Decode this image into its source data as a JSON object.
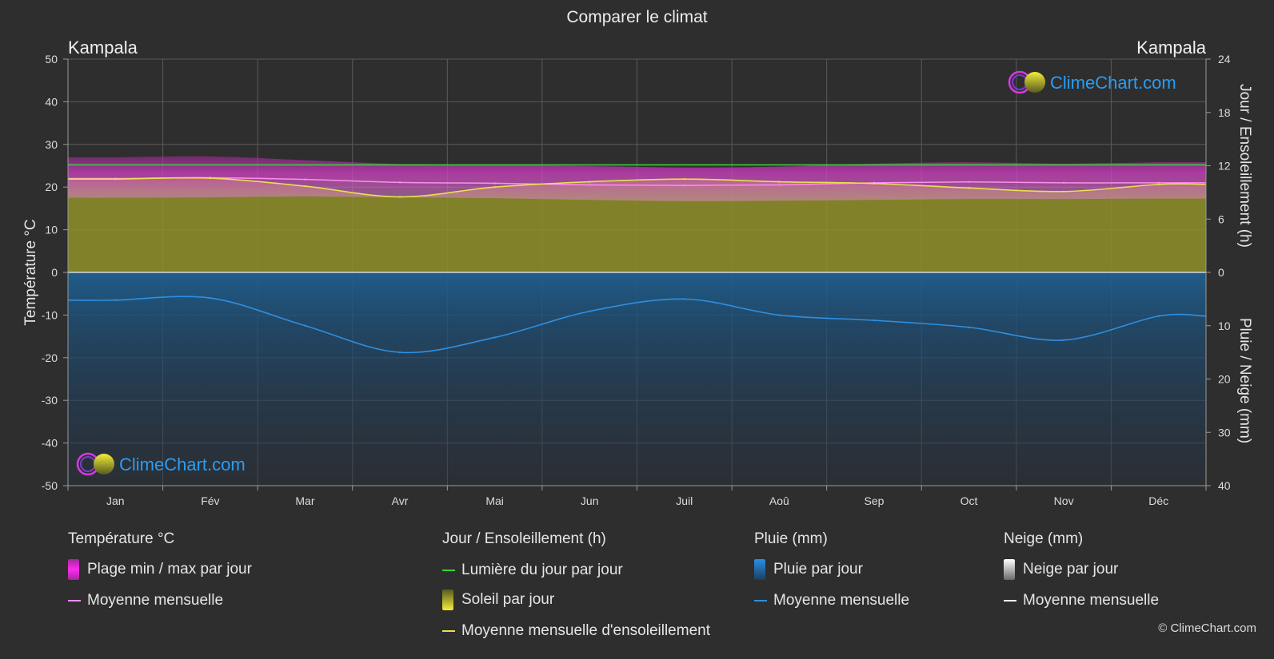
{
  "header": {
    "title": "Comparer le climat",
    "city_left": "Kampala",
    "city_right": "Kampala"
  },
  "watermark": {
    "text": "ClimeChart.com",
    "copyright": "© ClimeChart.com"
  },
  "colors": {
    "background": "#2e2e2e",
    "temp_band": "#c837b8",
    "temp_line": "#ff8cf0",
    "daylight": "#3ccf3c",
    "sunshine_fill": "#9a9a2a",
    "sunshine_line": "#e6e052",
    "rain_fill": "#1f5a86",
    "rain_line": "#2e8fe0",
    "snow_line": "#ffffff",
    "brand": "#2a9df4"
  },
  "chart_data": {
    "type": "area",
    "months": [
      "Jan",
      "Fév",
      "Mar",
      "Avr",
      "Mai",
      "Jun",
      "Juil",
      "Aoû",
      "Sep",
      "Oct",
      "Nov",
      "Déc"
    ],
    "left_axis": {
      "label": "Température °C",
      "ticks": [
        50,
        40,
        30,
        20,
        10,
        0,
        -10,
        -20,
        -30,
        -40,
        -50
      ],
      "range": [
        -50,
        50
      ]
    },
    "right_axis_top": {
      "label": "Jour / Ensoleillement (h)",
      "ticks": [
        24,
        18,
        12,
        6,
        0
      ],
      "range": [
        0,
        24
      ]
    },
    "right_axis_bottom": {
      "label": "Pluie / Neige (mm)",
      "ticks": [
        0,
        10,
        20,
        30,
        40
      ],
      "range": [
        0,
        40
      ]
    },
    "grid": true,
    "series": [
      {
        "name": "Plage min / max par jour",
        "kind": "band",
        "min": [
          17.5,
          17.6,
          17.8,
          17.6,
          17.4,
          17.0,
          16.7,
          16.8,
          17.0,
          17.2,
          17.2,
          17.3
        ],
        "max": [
          27.0,
          27.2,
          26.3,
          25.4,
          25.2,
          24.9,
          24.6,
          24.8,
          25.5,
          25.8,
          25.5,
          25.8
        ]
      },
      {
        "name": "Moyenne mensuelle (température)",
        "kind": "line",
        "values": [
          22.0,
          22.2,
          21.8,
          21.1,
          20.9,
          20.5,
          20.4,
          20.5,
          21.0,
          21.2,
          21.0,
          21.0
        ]
      },
      {
        "name": "Lumière du jour par jour",
        "kind": "line",
        "values": [
          12.1,
          12.1,
          12.1,
          12.1,
          12.1,
          12.1,
          12.1,
          12.1,
          12.1,
          12.1,
          12.1,
          12.1
        ]
      },
      {
        "name": "Moyenne mensuelle d'ensoleillement",
        "kind": "line",
        "values": [
          10.5,
          10.6,
          9.7,
          8.5,
          9.6,
          10.2,
          10.5,
          10.2,
          10.0,
          9.5,
          9.1,
          9.9
        ]
      },
      {
        "name": "Moyenne mensuelle (pluie)",
        "kind": "line",
        "values": [
          5.2,
          4.8,
          10.0,
          15.0,
          12.2,
          7.3,
          5.0,
          8.0,
          9.0,
          10.3,
          12.7,
          8.2
        ]
      }
    ]
  },
  "legend": {
    "groups": [
      {
        "title": "Température °C",
        "items": [
          "Plage min / max par jour",
          "Moyenne mensuelle"
        ]
      },
      {
        "title": "Jour / Ensoleillement (h)",
        "items": [
          "Lumière du jour par jour",
          "Soleil par jour",
          "Moyenne mensuelle d'ensoleillement"
        ]
      },
      {
        "title": "Pluie (mm)",
        "items": [
          "Pluie par jour",
          "Moyenne mensuelle"
        ]
      },
      {
        "title": "Neige (mm)",
        "items": [
          "Neige par jour",
          "Moyenne mensuelle"
        ]
      }
    ]
  }
}
